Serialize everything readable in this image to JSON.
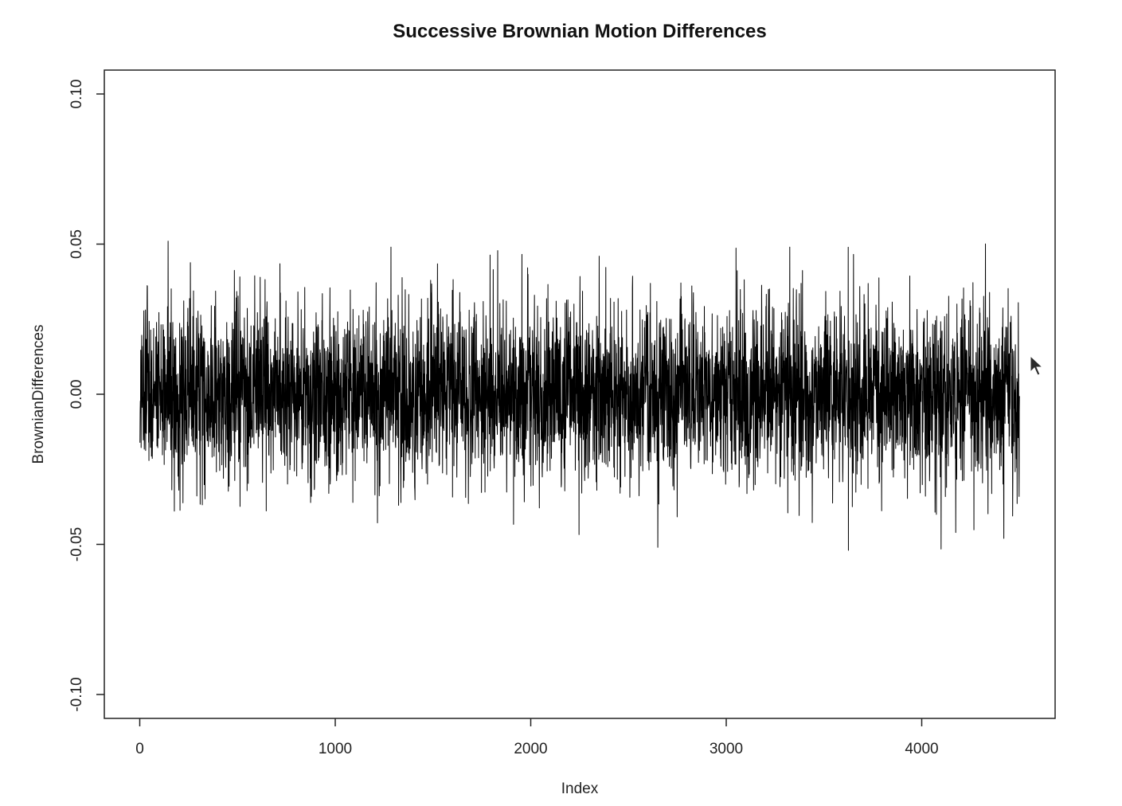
{
  "chart_data": {
    "type": "line",
    "title": "Successive Brownian Motion Differences",
    "xlabel": "Index",
    "ylabel": "BrownianDifferences",
    "xlim": [
      -180,
      4500
    ],
    "ylim": [
      -0.108,
      0.108
    ],
    "x_ticks": [
      0,
      1000,
      2000,
      3000,
      4000
    ],
    "x_tick_labels": [
      "0",
      "1000",
      "2000",
      "3000",
      "4000"
    ],
    "y_ticks": [
      -0.1,
      -0.05,
      0.0,
      0.05,
      0.1
    ],
    "y_tick_labels": [
      "-0.10",
      "-0.05",
      "0.00",
      "0.05",
      "0.10"
    ],
    "grid": false,
    "legend": "none",
    "series": [
      {
        "n_points": 4500,
        "x_start": 1,
        "x_end": 4500,
        "mean": 0.0,
        "sd": 0.0149,
        "min": -0.052,
        "max": 0.051,
        "color": "#000000",
        "notable_peaks": [
          {
            "x": 145,
            "y": 0.051
          },
          {
            "x": 1285,
            "y": 0.049
          },
          {
            "x": 2350,
            "y": 0.046
          },
          {
            "x": 3325,
            "y": 0.049
          }
        ],
        "notable_troughs": [
          {
            "x": 2650,
            "y": -0.051
          },
          {
            "x": 3625,
            "y": -0.052
          },
          {
            "x": 4420,
            "y": -0.048
          }
        ]
      }
    ]
  }
}
